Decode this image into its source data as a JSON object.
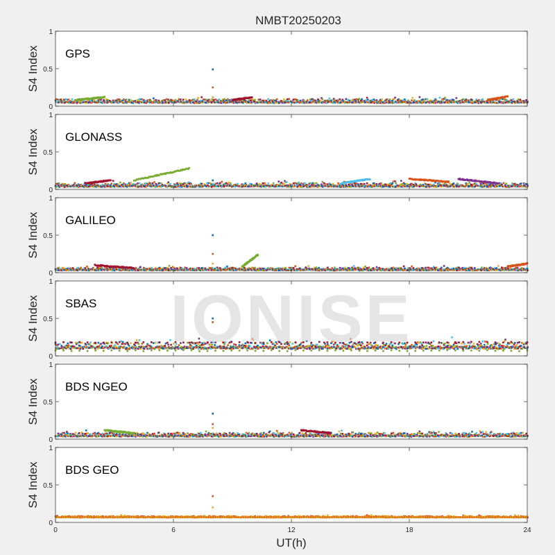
{
  "figure": {
    "title": "NMBT20250203",
    "watermark": "IONISE",
    "xlabel": "UT(h)",
    "xticks": [
      "0",
      "6",
      "12",
      "18",
      "24"
    ],
    "xlim": [
      0,
      24
    ]
  },
  "series_colors": [
    "#0072BD",
    "#D95319",
    "#EDB120",
    "#7E2F8E",
    "#77AC30",
    "#4DBEEE",
    "#A2142F"
  ],
  "chart_data": [
    {
      "type": "scatter",
      "label": "GPS",
      "ylabel": "S4 Index",
      "ylim": [
        0,
        1
      ],
      "yticks": [
        "0",
        "0.5",
        "1"
      ],
      "xlim": [
        0,
        24
      ],
      "grid": false,
      "baseline": 0.07,
      "spread": 0.04,
      "spikes": [
        {
          "x": 8.0,
          "y": [
            0.49,
            0.25,
            0.12
          ]
        }
      ],
      "features": [
        {
          "x0": 1.0,
          "x1": 2.5,
          "y0": 0.08,
          "y1": 0.12
        },
        {
          "x0": 9.0,
          "x1": 10.0,
          "y0": 0.08,
          "y1": 0.12
        },
        {
          "x0": 22.0,
          "x1": 23.0,
          "y0": 0.08,
          "y1": 0.13
        }
      ]
    },
    {
      "type": "scatter",
      "label": "GLONASS",
      "ylabel": "S4 Index",
      "ylim": [
        0,
        1
      ],
      "yticks": [
        "0",
        "0.5",
        "1"
      ],
      "xlim": [
        0,
        24
      ],
      "grid": false,
      "baseline": 0.06,
      "spread": 0.04,
      "spikes": [
        {
          "x": 8.0,
          "y": [
            0.12
          ]
        }
      ],
      "features": [
        {
          "x0": 4.0,
          "x1": 6.8,
          "y0": 0.12,
          "y1": 0.28
        },
        {
          "x0": 1.5,
          "x1": 2.8,
          "y0": 0.08,
          "y1": 0.12
        },
        {
          "x0": 18.0,
          "x1": 20.0,
          "y0": 0.14,
          "y1": 0.1
        },
        {
          "x0": 20.5,
          "x1": 22.5,
          "y0": 0.14,
          "y1": 0.08
        },
        {
          "x0": 14.5,
          "x1": 16.0,
          "y0": 0.08,
          "y1": 0.14
        }
      ]
    },
    {
      "type": "scatter",
      "label": "GALILEO",
      "ylabel": "S4 Index",
      "ylim": [
        0,
        1
      ],
      "yticks": [
        "0",
        "0.5",
        "1"
      ],
      "xlim": [
        0,
        24
      ],
      "grid": false,
      "baseline": 0.05,
      "spread": 0.03,
      "spikes": [
        {
          "x": 8.0,
          "y": [
            0.5,
            0.25,
            0.12
          ]
        }
      ],
      "features": [
        {
          "x0": 9.5,
          "x1": 10.3,
          "y0": 0.08,
          "y1": 0.24
        },
        {
          "x0": 2.0,
          "x1": 4.0,
          "y0": 0.1,
          "y1": 0.06
        },
        {
          "x0": 23.0,
          "x1": 24.0,
          "y0": 0.08,
          "y1": 0.12
        }
      ]
    },
    {
      "type": "scatter",
      "label": "SBAS",
      "ylabel": "S4 Index",
      "ylim": [
        0,
        1
      ],
      "yticks": [
        "0",
        "0.5",
        "1"
      ],
      "xlim": [
        0,
        24
      ],
      "grid": false,
      "baseline": 0.14,
      "spread": 0.07,
      "spikes": [
        {
          "x": 8.0,
          "y": [
            0.5,
            0.45
          ]
        }
      ],
      "features": [
        {
          "x0": 0.0,
          "x1": 24.0,
          "y0": 0.07,
          "y1": 0.07
        },
        {
          "x0": 0.0,
          "x1": 24.0,
          "y0": 0.18,
          "y1": 0.18
        }
      ]
    },
    {
      "type": "scatter",
      "label": "BDS NGEO",
      "ylabel": "S4 Index",
      "ylim": [
        0,
        1
      ],
      "yticks": [
        "0",
        "0.5",
        "1"
      ],
      "xlim": [
        0,
        24
      ],
      "grid": false,
      "baseline": 0.06,
      "spread": 0.04,
      "spikes": [
        {
          "x": 8.0,
          "y": [
            0.34,
            0.2,
            0.15
          ]
        }
      ],
      "features": [
        {
          "x0": 2.5,
          "x1": 4.0,
          "y0": 0.12,
          "y1": 0.08
        },
        {
          "x0": 12.5,
          "x1": 14.0,
          "y0": 0.12,
          "y1": 0.08
        }
      ]
    },
    {
      "type": "scatter",
      "label": "BDS GEO",
      "ylabel": "S4 Index",
      "ylim": [
        0,
        1
      ],
      "yticks": [
        "0",
        "0.5",
        "1"
      ],
      "xlim": [
        0,
        24
      ],
      "grid": false,
      "baseline": 0.075,
      "spread": 0.015,
      "colors": [
        "#D95319",
        "#EDB120"
      ],
      "spikes": [
        {
          "x": 8.0,
          "y": [
            0.35,
            0.2
          ]
        }
      ],
      "features": []
    }
  ]
}
